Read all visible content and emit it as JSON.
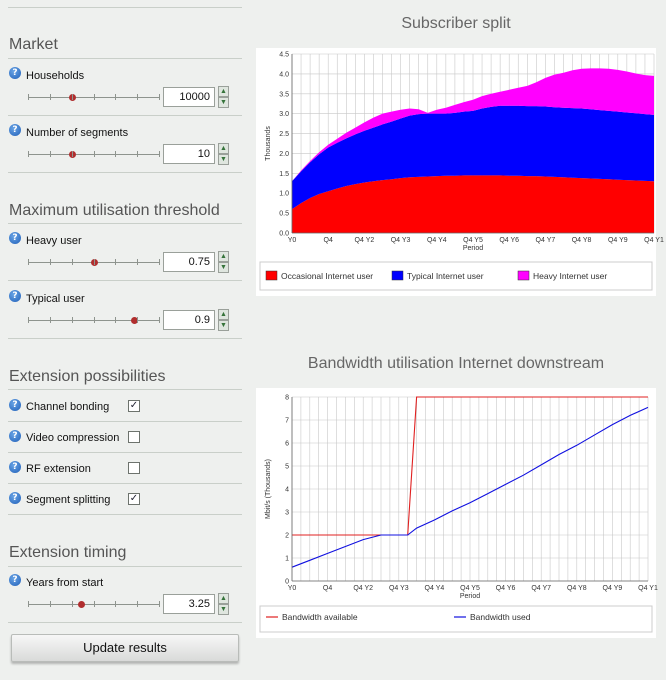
{
  "sections": {
    "market": "Market",
    "threshold": "Maximum utilisation threshold",
    "extension": "Extension possibilities",
    "timing": "Extension timing"
  },
  "help_glyph": "?",
  "fields": {
    "households": {
      "label": "Households",
      "value": "10000",
      "slider_fraction": 0.33
    },
    "segments": {
      "label": "Number of segments",
      "value": "10",
      "slider_fraction": 0.33
    },
    "heavy_user": {
      "label": "Heavy user",
      "value": "0.75",
      "slider_fraction": 0.5
    },
    "typical_user": {
      "label": "Typical user",
      "value": "0.9",
      "slider_fraction": 0.8
    },
    "years_from_start": {
      "label": "Years from start",
      "value": "3.25",
      "slider_fraction": 0.4
    }
  },
  "extensions": [
    {
      "label": "Channel bonding",
      "checked": true
    },
    {
      "label": "Video compression",
      "checked": false
    },
    {
      "label": "RF extension",
      "checked": false
    },
    {
      "label": "Segment splitting",
      "checked": true
    }
  ],
  "update_button": "Update results",
  "charts": {
    "subscriber": {
      "title": "Subscriber split"
    },
    "bandwidth": {
      "title": "Bandwidth utilisation Internet downstream"
    }
  },
  "chart_data": [
    {
      "type": "area",
      "title": "Subscriber split",
      "xlabel": "Period",
      "ylabel": "Thousands",
      "ylim": [
        0,
        4.5
      ],
      "yticks": [
        "0.0",
        "0.5",
        "1.0",
        "1.5",
        "2.0",
        "2.5",
        "3.0",
        "3.5",
        "4.0",
        "4.5"
      ],
      "xticks": [
        "Y0",
        "Q4",
        "Q4 Y2",
        "Q4 Y3",
        "Q4 Y4",
        "Q4 Y5",
        "Q4 Y6",
        "Q4 Y7",
        "Q4 Y8",
        "Q4 Y9",
        "Q4 Y1"
      ],
      "x": [
        0,
        1,
        2,
        3,
        4,
        5,
        6,
        7,
        8,
        9,
        10,
        11,
        12,
        13,
        14,
        15,
        16,
        17,
        18,
        19,
        20,
        21,
        22,
        23,
        24,
        25,
        26,
        27,
        28,
        29,
        30,
        31,
        32,
        33,
        34,
        35,
        36,
        37,
        38,
        39,
        40
      ],
      "stacked": true,
      "grid": true,
      "legend_position": "bottom",
      "series": [
        {
          "name": "Occasional Internet user",
          "color": "#ff0000",
          "values": [
            0.6,
            0.75,
            0.88,
            0.98,
            1.05,
            1.12,
            1.18,
            1.23,
            1.27,
            1.3,
            1.33,
            1.35,
            1.38,
            1.4,
            1.41,
            1.42,
            1.43,
            1.44,
            1.44,
            1.45,
            1.45,
            1.45,
            1.45,
            1.45,
            1.44,
            1.44,
            1.43,
            1.43,
            1.42,
            1.41,
            1.4,
            1.39,
            1.38,
            1.37,
            1.36,
            1.35,
            1.34,
            1.33,
            1.32,
            1.31,
            1.3
          ]
        },
        {
          "name": "Typical Internet user",
          "color": "#0000ff",
          "values": [
            0.7,
            0.8,
            0.9,
            1.0,
            1.1,
            1.15,
            1.2,
            1.25,
            1.3,
            1.35,
            1.4,
            1.45,
            1.5,
            1.55,
            1.58,
            1.58,
            1.57,
            1.56,
            1.58,
            1.6,
            1.62,
            1.68,
            1.72,
            1.75,
            1.76,
            1.76,
            1.76,
            1.76,
            1.76,
            1.75,
            1.75,
            1.75,
            1.75,
            1.74,
            1.73,
            1.72,
            1.71,
            1.7,
            1.69,
            1.68,
            1.67
          ]
        },
        {
          "name": "Heavy Internet user",
          "color": "#ff00ff",
          "values": [
            0.0,
            0.02,
            0.03,
            0.05,
            0.07,
            0.1,
            0.14,
            0.17,
            0.21,
            0.25,
            0.27,
            0.25,
            0.22,
            0.18,
            0.12,
            0.02,
            0.1,
            0.15,
            0.2,
            0.24,
            0.28,
            0.31,
            0.33,
            0.35,
            0.4,
            0.45,
            0.51,
            0.6,
            0.72,
            0.82,
            0.88,
            0.95,
            1.0,
            1.03,
            1.05,
            1.06,
            1.05,
            1.03,
            1.0,
            0.98,
            0.98
          ]
        }
      ]
    },
    {
      "type": "line",
      "title": "Bandwidth utilisation Internet downstream",
      "xlabel": "Period",
      "ylabel": "Mbit/s (Thousands)",
      "ylim": [
        0,
        8
      ],
      "yticks": [
        "0",
        "1",
        "2",
        "3",
        "4",
        "5",
        "6",
        "7",
        "8"
      ],
      "xticks": [
        "Y0",
        "Q4",
        "Q4 Y2",
        "Q4 Y3",
        "Q4 Y4",
        "Q4 Y5",
        "Q4 Y6",
        "Q4 Y7",
        "Q4 Y8",
        "Q4 Y9",
        "Q4 Y1"
      ],
      "grid": true,
      "legend_position": "bottom",
      "series": [
        {
          "name": "Bandwidth available",
          "color": "#e02020",
          "x": [
            0,
            13,
            14,
            40
          ],
          "values": [
            2,
            2,
            8,
            8
          ]
        },
        {
          "name": "Bandwidth used",
          "color": "#1010e0",
          "x": [
            0,
            2,
            4,
            6,
            8,
            10,
            12,
            13,
            14,
            16,
            18,
            20,
            22,
            24,
            26,
            28,
            30,
            32,
            34,
            36,
            38,
            40
          ],
          "values": [
            0.6,
            0.9,
            1.2,
            1.5,
            1.8,
            2.0,
            2.0,
            2.0,
            2.3,
            2.65,
            3.05,
            3.4,
            3.8,
            4.2,
            4.6,
            5.05,
            5.5,
            5.9,
            6.35,
            6.8,
            7.2,
            7.55
          ]
        }
      ]
    }
  ]
}
